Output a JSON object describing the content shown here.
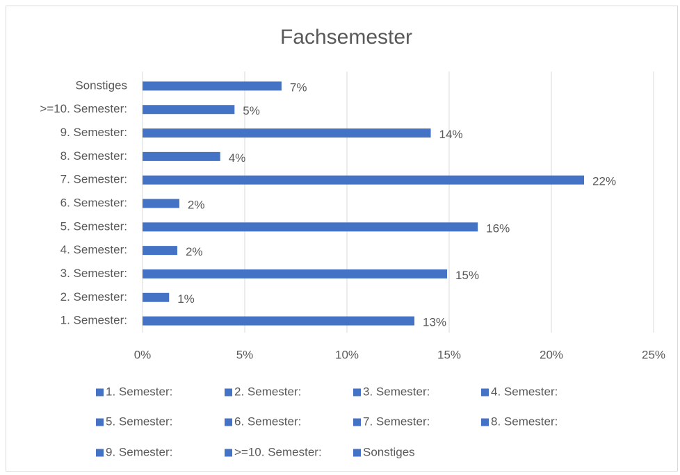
{
  "chart_data": {
    "type": "bar",
    "orientation": "horizontal",
    "title": "Fachsemester",
    "categories": [
      "1. Semester:",
      "2. Semester:",
      "3. Semester:",
      "4. Semester:",
      "5. Semester:",
      "6. Semester:",
      "7. Semester:",
      "8. Semester:",
      "9. Semester:",
      ">=10. Semester:",
      "Sonstiges"
    ],
    "values": [
      13.3,
      1.3,
      14.9,
      1.7,
      16.4,
      1.8,
      21.6,
      3.8,
      14.1,
      4.5,
      6.8
    ],
    "value_labels": [
      "13%",
      "1%",
      "15%",
      "2%",
      "16%",
      "2%",
      "22%",
      "4%",
      "14%",
      "5%",
      "7%"
    ],
    "color": "#4472c4",
    "xlim": [
      0,
      25
    ],
    "xticks": [
      {
        "value": 0,
        "label": "0%"
      },
      {
        "value": 5,
        "label": "5%"
      },
      {
        "value": 10,
        "label": "10%"
      },
      {
        "value": 15,
        "label": "15%"
      },
      {
        "value": 20,
        "label": "20%"
      },
      {
        "value": 25,
        "label": "25%"
      }
    ],
    "grid": true,
    "legend": "bottom"
  }
}
